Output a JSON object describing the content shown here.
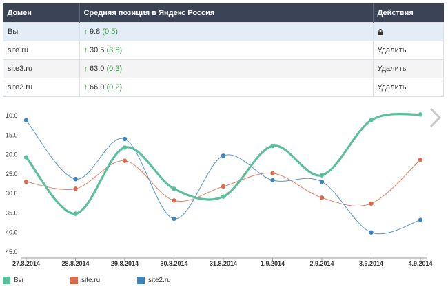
{
  "table": {
    "headers": [
      "Домен",
      "Средняя позиция в Яндекс Россия",
      "Действия"
    ],
    "rows": [
      {
        "domain": "Вы",
        "position": "9.8",
        "change": "(0.5)",
        "action": ""
      },
      {
        "domain": "site.ru",
        "position": "30.5",
        "change": "(3.8)",
        "action": "Удалить"
      },
      {
        "domain": "site3.ru",
        "position": "63.0",
        "change": "(0.3)",
        "action": "Удалить"
      },
      {
        "domain": "site2.ru",
        "position": "66.0",
        "change": "(0.2)",
        "action": "Удалить"
      }
    ]
  },
  "chart_data": {
    "type": "line",
    "categories": [
      "27.8.2014",
      "28.8.2014",
      "29.8.2014",
      "30.8.2014",
      "31.8.2014",
      "1.9.2014",
      "2.9.2014",
      "3.9.2014",
      "4.9.2014"
    ],
    "y_ticks": [
      "10.0",
      "15.0",
      "20.0",
      "25.0",
      "30.0",
      "35.0",
      "40.0",
      "45.0"
    ],
    "ylim": [
      8,
      45
    ],
    "y_inverted": true,
    "series": [
      {
        "name": "Вы",
        "color": "#5cbf9c",
        "values": [
          20.7,
          35.2,
          18.2,
          28.8,
          30.8,
          17.8,
          25.3,
          11.2,
          9.7
        ]
      },
      {
        "name": "site.ru",
        "color": "#db6a4d",
        "values": [
          27,
          28.8,
          21.6,
          31.8,
          28.2,
          24.8,
          31.1,
          32.6,
          21.3
        ]
      },
      {
        "name": "site2.ru",
        "color": "#3c83bd",
        "values": [
          11.2,
          26.3,
          16,
          36.5,
          20.3,
          26.6,
          27,
          40,
          36.8
        ]
      }
    ]
  },
  "legend": [
    {
      "name": "Вы",
      "color": "#5cbf9c"
    },
    {
      "name": "site.ru",
      "color": "#db6a4d"
    },
    {
      "name": "site2.ru",
      "color": "#3c83bd"
    }
  ],
  "nav": {
    "next_icon": "chevron-right-icon"
  }
}
